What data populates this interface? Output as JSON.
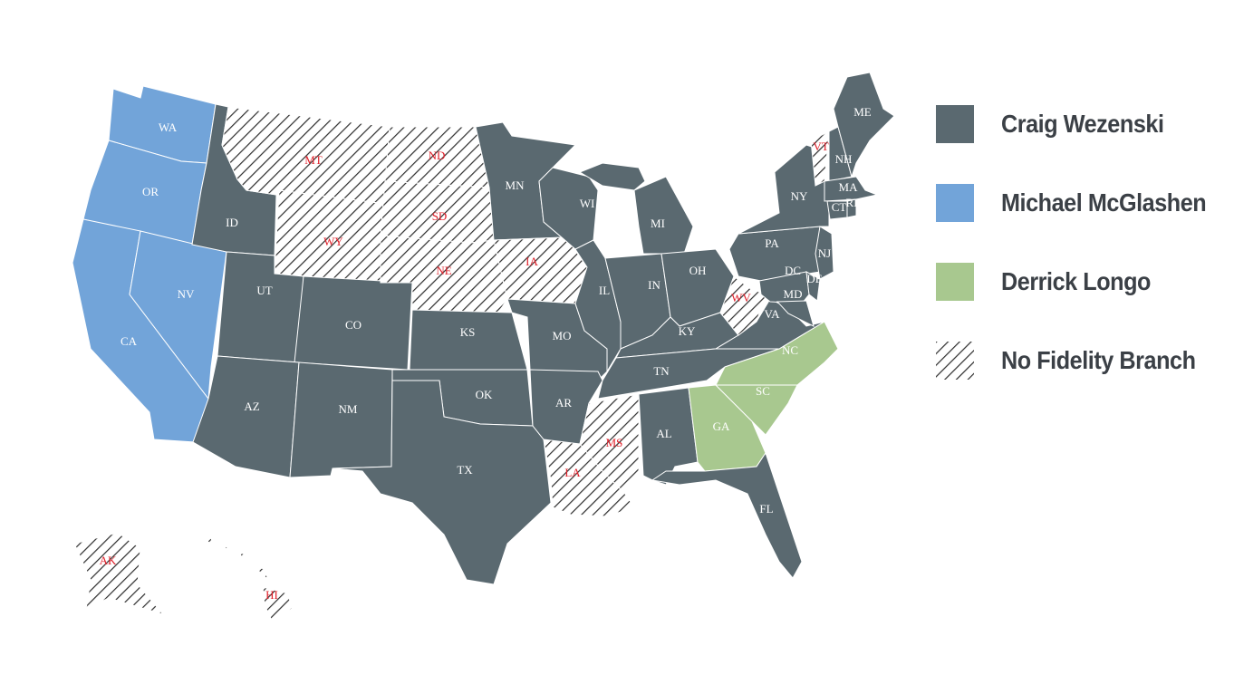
{
  "legend": [
    {
      "key": "craig",
      "label": "Craig Wezenski",
      "color": "#5a6970"
    },
    {
      "key": "michael",
      "label": "Michael McGlashen",
      "color": "#72a4d9"
    },
    {
      "key": "derrick",
      "label": "Derrick Longo",
      "color": "#a8c88f"
    },
    {
      "key": "none",
      "label": "No Fidelity Branch",
      "pattern": "diagonal-hatch"
    }
  ],
  "label_colors": {
    "default": "#ffffff",
    "none": "#e0202a"
  },
  "states": [
    {
      "code": "WA",
      "label": "WA",
      "owner": "michael"
    },
    {
      "code": "OR",
      "label": "OR",
      "owner": "michael"
    },
    {
      "code": "CA",
      "label": "CA",
      "owner": "michael"
    },
    {
      "code": "NV",
      "label": "NV",
      "owner": "michael"
    },
    {
      "code": "ID",
      "label": "ID",
      "owner": "craig"
    },
    {
      "code": "MT",
      "label": "MT",
      "owner": "none"
    },
    {
      "code": "WY",
      "label": "WY",
      "owner": "none"
    },
    {
      "code": "UT",
      "label": "UT",
      "owner": "craig"
    },
    {
      "code": "CO",
      "label": "CO",
      "owner": "craig"
    },
    {
      "code": "AZ",
      "label": "AZ",
      "owner": "craig"
    },
    {
      "code": "NM",
      "label": "NM",
      "owner": "craig"
    },
    {
      "code": "ND",
      "label": "ND",
      "owner": "none"
    },
    {
      "code": "SD",
      "label": "SD",
      "owner": "none"
    },
    {
      "code": "NE",
      "label": "NE",
      "owner": "none"
    },
    {
      "code": "KS",
      "label": "KS",
      "owner": "craig"
    },
    {
      "code": "OK",
      "label": "OK",
      "owner": "craig"
    },
    {
      "code": "TX",
      "label": "TX",
      "owner": "craig"
    },
    {
      "code": "MN",
      "label": "MN",
      "owner": "craig"
    },
    {
      "code": "IA",
      "label": "IA",
      "owner": "none"
    },
    {
      "code": "MO",
      "label": "MO",
      "owner": "craig"
    },
    {
      "code": "AR",
      "label": "AR",
      "owner": "craig"
    },
    {
      "code": "LA",
      "label": "LA",
      "owner": "none"
    },
    {
      "code": "MS",
      "label": "MS",
      "owner": "none"
    },
    {
      "code": "WI",
      "label": "WI",
      "owner": "craig"
    },
    {
      "code": "IL",
      "label": "IL",
      "owner": "craig"
    },
    {
      "code": "IN",
      "label": "IN",
      "owner": "craig"
    },
    {
      "code": "MI",
      "label": "MI",
      "owner": "craig"
    },
    {
      "code": "OH",
      "label": "OH",
      "owner": "craig"
    },
    {
      "code": "KY",
      "label": "KY",
      "owner": "craig"
    },
    {
      "code": "TN",
      "label": "TN",
      "owner": "craig"
    },
    {
      "code": "AL",
      "label": "AL",
      "owner": "craig"
    },
    {
      "code": "GA",
      "label": "GA",
      "owner": "derrick"
    },
    {
      "code": "FL",
      "label": "FL",
      "owner": "craig"
    },
    {
      "code": "SC",
      "label": "SC",
      "owner": "derrick"
    },
    {
      "code": "NC",
      "label": "NC",
      "owner": "derrick"
    },
    {
      "code": "VA",
      "label": "VA",
      "owner": "craig"
    },
    {
      "code": "WV",
      "label": "WV",
      "owner": "none"
    },
    {
      "code": "PA",
      "label": "PA",
      "owner": "craig"
    },
    {
      "code": "NY",
      "label": "NY",
      "owner": "craig"
    },
    {
      "code": "NJ",
      "label": "NJ",
      "owner": "craig"
    },
    {
      "code": "DC",
      "label": "DC",
      "owner": "craig"
    },
    {
      "code": "MD",
      "label": "MD",
      "owner": "craig"
    },
    {
      "code": "DE",
      "label": "DE",
      "owner": "craig"
    },
    {
      "code": "VT",
      "label": "VT",
      "owner": "none"
    },
    {
      "code": "NH",
      "label": "NH",
      "owner": "craig"
    },
    {
      "code": "ME",
      "label": "ME",
      "owner": "craig"
    },
    {
      "code": "MA",
      "label": "MA",
      "owner": "craig"
    },
    {
      "code": "CT",
      "label": "CT",
      "owner": "craig"
    },
    {
      "code": "RI",
      "label": "RI",
      "owner": "craig"
    },
    {
      "code": "AK",
      "label": "AK",
      "owner": "none"
    },
    {
      "code": "HI",
      "label": "HI",
      "owner": "none"
    }
  ]
}
